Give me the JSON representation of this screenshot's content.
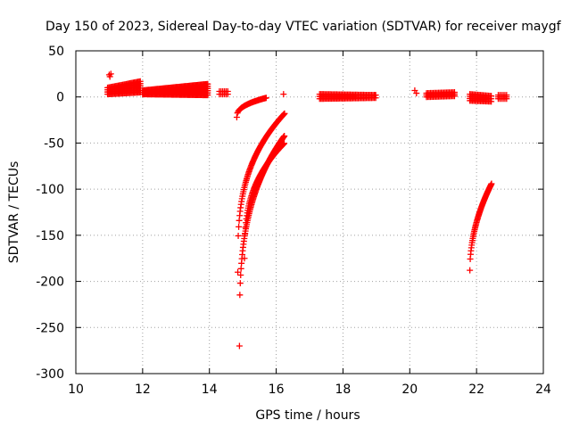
{
  "chart_data": {
    "type": "scatter",
    "title": "Day 150 of 2023, Sidereal Day-to-day VTEC variation (SDTVAR) for receiver maygf",
    "xlabel": "GPS time / hours",
    "ylabel": "SDTVAR / TECUs",
    "xlim": [
      10,
      24
    ],
    "ylim": [
      -300,
      50
    ],
    "xticks": [
      "10",
      "12",
      "14",
      "16",
      "18",
      "20",
      "22",
      "24"
    ],
    "yticks": [
      "50",
      "0",
      "-50",
      "-100",
      "-150",
      "-200",
      "-250",
      "-300"
    ],
    "grid": true,
    "marker": "+",
    "series": [
      {
        "name": "SDTVAR",
        "color": "#ff0000",
        "segments": [
          {
            "kind": "band",
            "x0": 10.95,
            "x1": 11.95,
            "low": [
              3,
              5
            ],
            "high": [
              10,
              17
            ],
            "step": 0.035
          },
          {
            "kind": "band",
            "x0": 12.0,
            "x1": 13.95,
            "low": [
              3,
              2
            ],
            "high": [
              7,
              14
            ],
            "step": 0.03
          },
          {
            "kind": "band",
            "x0": 14.3,
            "x1": 14.55,
            "low": [
              3,
              3
            ],
            "high": [
              6,
              6
            ],
            "step": 0.05
          },
          {
            "kind": "curve",
            "x0": 14.82,
            "x1": 15.7,
            "y0": -22,
            "y1": -1,
            "power": 0.4,
            "step": 0.02
          },
          {
            "kind": "curve",
            "x0": 14.85,
            "x1": 16.25,
            "y0": -190,
            "y1": -18,
            "power": 0.32,
            "step": 0.014
          },
          {
            "kind": "curve",
            "x0": 14.9,
            "x1": 16.25,
            "y0": -270,
            "y1": -42,
            "power": 0.3,
            "step": 0.012
          },
          {
            "kind": "curve",
            "x0": 15.05,
            "x1": 16.25,
            "y0": -175,
            "y1": -50,
            "power": 0.35,
            "step": 0.014
          },
          {
            "kind": "band",
            "x0": 17.3,
            "x1": 19.0,
            "low": [
              -2,
              -1
            ],
            "high": [
              3,
              2
            ],
            "step": 0.04
          },
          {
            "kind": "band",
            "x0": 20.5,
            "x1": 21.35,
            "low": [
              0,
              1
            ],
            "high": [
              4,
              5
            ],
            "step": 0.04
          },
          {
            "kind": "band",
            "x0": 21.8,
            "x1": 22.45,
            "low": [
              -4,
              -5
            ],
            "high": [
              3,
              1
            ],
            "step": 0.04
          },
          {
            "kind": "band",
            "x0": 22.65,
            "x1": 22.9,
            "low": [
              -2,
              -2
            ],
            "high": [
              2,
              2
            ],
            "step": 0.05
          },
          {
            "kind": "curve",
            "x0": 21.8,
            "x1": 22.45,
            "y0": -188,
            "y1": -94,
            "power": 0.5,
            "step": 0.011
          },
          {
            "kind": "points",
            "x": [
              11.0,
              11.05,
              11.02,
              16.22,
              20.15,
              20.2,
              18.95
            ],
            "y": [
              24,
              25,
              22,
              3,
              7,
              4,
              2
            ]
          }
        ]
      }
    ]
  }
}
